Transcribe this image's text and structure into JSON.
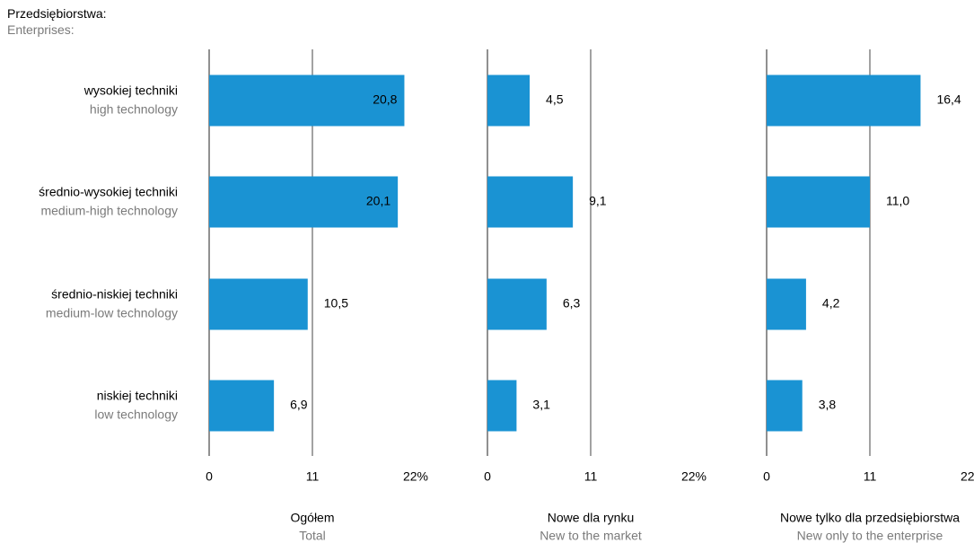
{
  "header": {
    "title_pl": "Przedsiębiorstwa:",
    "title_en": "Enterprises:"
  },
  "colors": {
    "bar": "#1a93d3",
    "axis": "#222222",
    "grid": "#444444",
    "text": "#000000",
    "muted": "#7a7a7a"
  },
  "chart_data": {
    "type": "bar",
    "orientation": "horizontal",
    "categories": [
      {
        "pl": "wysokiej techniki",
        "en": "high technology"
      },
      {
        "pl": "średnio-wysokiej techniki",
        "en": "medium-high technology"
      },
      {
        "pl": "średnio-niskiej techniki",
        "en": "medium-low technology"
      },
      {
        "pl": "niskiej techniki",
        "en": "low technology"
      }
    ],
    "xlim": [
      0,
      22
    ],
    "ticks": [
      "0",
      "11",
      "22%"
    ],
    "grid": true,
    "panels": [
      {
        "title_pl": "Ogółem",
        "title_en": "Total",
        "values": [
          20.8,
          20.1,
          10.5,
          6.9
        ],
        "labels": [
          "20,8",
          "20,1",
          "10,5",
          "6,9"
        ]
      },
      {
        "title_pl": "Nowe dla rynku",
        "title_en": "New to the market",
        "values": [
          4.5,
          9.1,
          6.3,
          3.1
        ],
        "labels": [
          "4,5",
          "9,1",
          "6,3",
          "3,1"
        ]
      },
      {
        "title_pl": "Nowe tylko dla przedsiębiorstwa",
        "title_en": "New only to the enterprise",
        "values": [
          16.4,
          11.0,
          4.2,
          3.8
        ],
        "labels": [
          "16,4",
          "11,0",
          "4,2",
          "3,8"
        ]
      }
    ]
  }
}
